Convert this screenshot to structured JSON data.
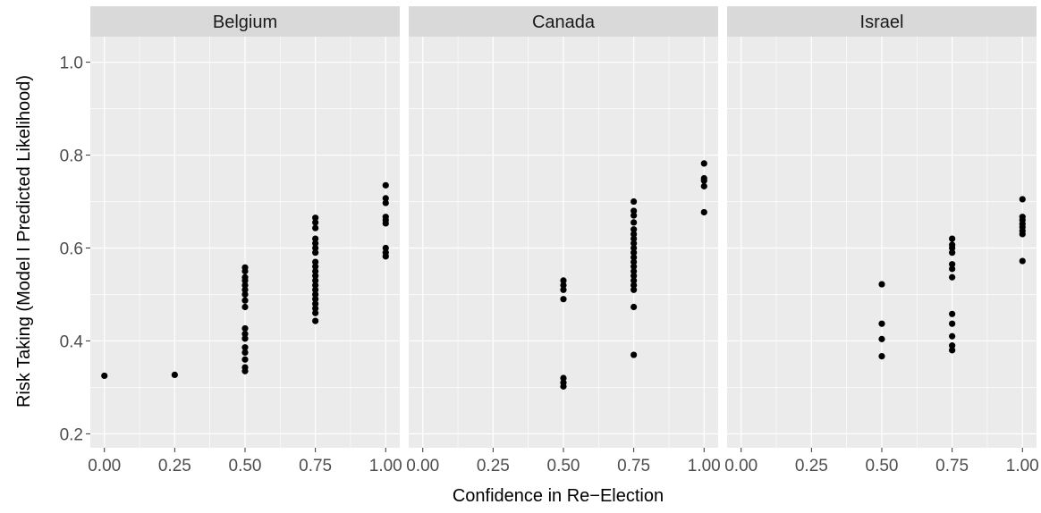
{
  "chart_data": {
    "type": "scatter",
    "xlabel": "Confidence in Re−Election",
    "ylabel": "Risk Taking (Model I Predicted Likelihood)",
    "xlim": [
      -0.05,
      1.05
    ],
    "ylim": [
      0.17,
      1.055
    ],
    "x_ticks": [
      0,
      0.25,
      0.5,
      0.75,
      1.0
    ],
    "x_tick_labels": [
      "0.00",
      "0.25",
      "0.50",
      "0.75",
      "1.00"
    ],
    "y_ticks": [
      0.2,
      0.4,
      0.6,
      0.8,
      1.0
    ],
    "y_tick_labels": [
      "0.2",
      "0.4",
      "0.6",
      "0.8",
      "1.0"
    ],
    "grid": true,
    "colors": {
      "panel": "#ebebeb",
      "strip": "#d9d9d9",
      "grid_major": "#ffffff",
      "point": "#000000"
    },
    "panels": [
      {
        "name": "Belgium",
        "points": [
          [
            0,
            0.325
          ],
          [
            0.25,
            0.327
          ],
          [
            0.5,
            0.335
          ],
          [
            0.5,
            0.343
          ],
          [
            0.5,
            0.36
          ],
          [
            0.5,
            0.375
          ],
          [
            0.5,
            0.386
          ],
          [
            0.5,
            0.405
          ],
          [
            0.5,
            0.415
          ],
          [
            0.5,
            0.427
          ],
          [
            0.5,
            0.473
          ],
          [
            0.5,
            0.487
          ],
          [
            0.5,
            0.5
          ],
          [
            0.5,
            0.51
          ],
          [
            0.5,
            0.52
          ],
          [
            0.5,
            0.53
          ],
          [
            0.5,
            0.537
          ],
          [
            0.5,
            0.55
          ],
          [
            0.5,
            0.558
          ],
          [
            0.75,
            0.443
          ],
          [
            0.75,
            0.46
          ],
          [
            0.75,
            0.47
          ],
          [
            0.75,
            0.48
          ],
          [
            0.75,
            0.49
          ],
          [
            0.75,
            0.5
          ],
          [
            0.75,
            0.51
          ],
          [
            0.75,
            0.52
          ],
          [
            0.75,
            0.53
          ],
          [
            0.75,
            0.54
          ],
          [
            0.75,
            0.55
          ],
          [
            0.75,
            0.56
          ],
          [
            0.75,
            0.57
          ],
          [
            0.75,
            0.59
          ],
          [
            0.75,
            0.6
          ],
          [
            0.75,
            0.61
          ],
          [
            0.75,
            0.62
          ],
          [
            0.75,
            0.643
          ],
          [
            0.75,
            0.655
          ],
          [
            0.75,
            0.665
          ],
          [
            1.0,
            0.582
          ],
          [
            1.0,
            0.59
          ],
          [
            1.0,
            0.6
          ],
          [
            1.0,
            0.653
          ],
          [
            1.0,
            0.66
          ],
          [
            1.0,
            0.667
          ],
          [
            1.0,
            0.697
          ],
          [
            1.0,
            0.707
          ],
          [
            1.0,
            0.735
          ]
        ]
      },
      {
        "name": "Canada",
        "points": [
          [
            0.5,
            0.302
          ],
          [
            0.5,
            0.31
          ],
          [
            0.5,
            0.32
          ],
          [
            0.5,
            0.49
          ],
          [
            0.5,
            0.51
          ],
          [
            0.5,
            0.52
          ],
          [
            0.5,
            0.53
          ],
          [
            0.75,
            0.37
          ],
          [
            0.75,
            0.473
          ],
          [
            0.75,
            0.51
          ],
          [
            0.75,
            0.52
          ],
          [
            0.75,
            0.53
          ],
          [
            0.75,
            0.54
          ],
          [
            0.75,
            0.55
          ],
          [
            0.75,
            0.56
          ],
          [
            0.75,
            0.57
          ],
          [
            0.75,
            0.58
          ],
          [
            0.75,
            0.59
          ],
          [
            0.75,
            0.6
          ],
          [
            0.75,
            0.61
          ],
          [
            0.75,
            0.62
          ],
          [
            0.75,
            0.63
          ],
          [
            0.75,
            0.64
          ],
          [
            0.75,
            0.655
          ],
          [
            0.75,
            0.67
          ],
          [
            0.75,
            0.68
          ],
          [
            0.75,
            0.7
          ],
          [
            1.0,
            0.677
          ],
          [
            1.0,
            0.733
          ],
          [
            1.0,
            0.745
          ],
          [
            1.0,
            0.75
          ],
          [
            1.0,
            0.782
          ]
        ]
      },
      {
        "name": "Israel",
        "points": [
          [
            0.5,
            0.367
          ],
          [
            0.5,
            0.404
          ],
          [
            0.5,
            0.437
          ],
          [
            0.5,
            0.522
          ],
          [
            0.75,
            0.38
          ],
          [
            0.75,
            0.39
          ],
          [
            0.75,
            0.41
          ],
          [
            0.75,
            0.437
          ],
          [
            0.75,
            0.458
          ],
          [
            0.75,
            0.537
          ],
          [
            0.75,
            0.555
          ],
          [
            0.75,
            0.565
          ],
          [
            0.75,
            0.59
          ],
          [
            0.75,
            0.6
          ],
          [
            0.75,
            0.607
          ],
          [
            0.75,
            0.62
          ],
          [
            1.0,
            0.572
          ],
          [
            1.0,
            0.63
          ],
          [
            1.0,
            0.637
          ],
          [
            1.0,
            0.645
          ],
          [
            1.0,
            0.652
          ],
          [
            1.0,
            0.66
          ],
          [
            1.0,
            0.667
          ],
          [
            1.0,
            0.705
          ]
        ]
      }
    ]
  }
}
